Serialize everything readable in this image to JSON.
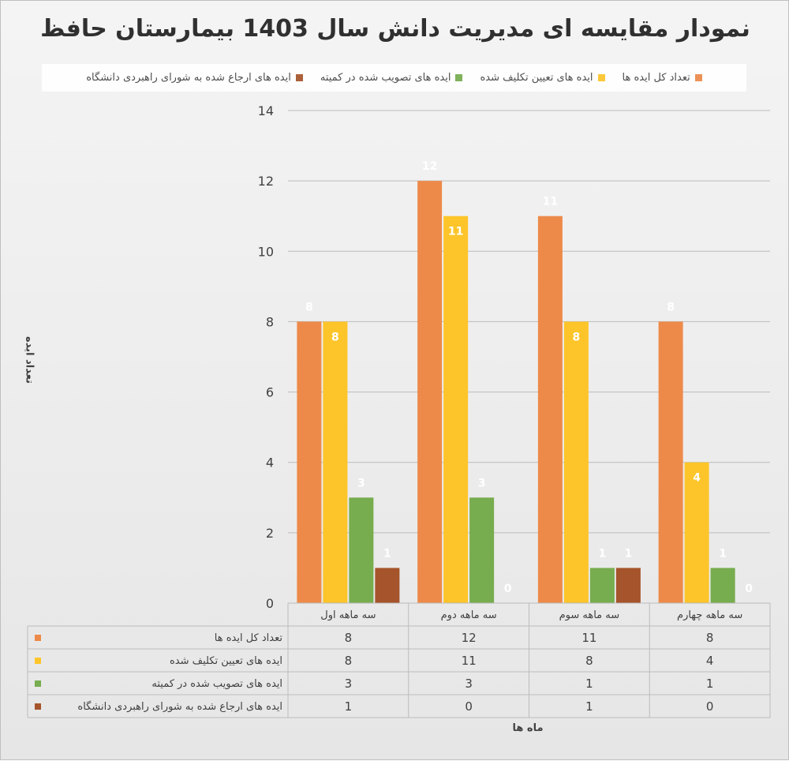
{
  "chart_data": {
    "type": "bar",
    "title": "نمودار مقایسه ای مدیریت دانش سال 1403 بیمارستان حافظ",
    "xlabel": "ماه ها",
    "ylabel": "تعداد ایده",
    "ylim": [
      0,
      14
    ],
    "yticks": [
      0,
      2,
      4,
      6,
      8,
      10,
      12,
      14
    ],
    "grid": true,
    "legend_position": "top",
    "categories": [
      "سه ماهه اول",
      "سه ماهه دوم",
      "سه ماهه سوم",
      "سه ماهه چهارم"
    ],
    "series": [
      {
        "name": "تعداد کل ایده ها",
        "color": "#ED8A4A",
        "values": [
          8,
          12,
          11,
          8
        ]
      },
      {
        "name": "ایده های تعیین تکلیف شده",
        "color": "#FDC52A",
        "values": [
          8,
          11,
          8,
          4
        ]
      },
      {
        "name": "ایده های تصویب شده در کمیته",
        "color": "#77AC4F",
        "values": [
          3,
          3,
          1,
          1
        ]
      },
      {
        "name": "ایده های ارجاع شده به شورای راهبردی دانشگاه",
        "color": "#A5542B",
        "values": [
          1,
          0,
          1,
          0
        ]
      }
    ],
    "data_table": true
  }
}
